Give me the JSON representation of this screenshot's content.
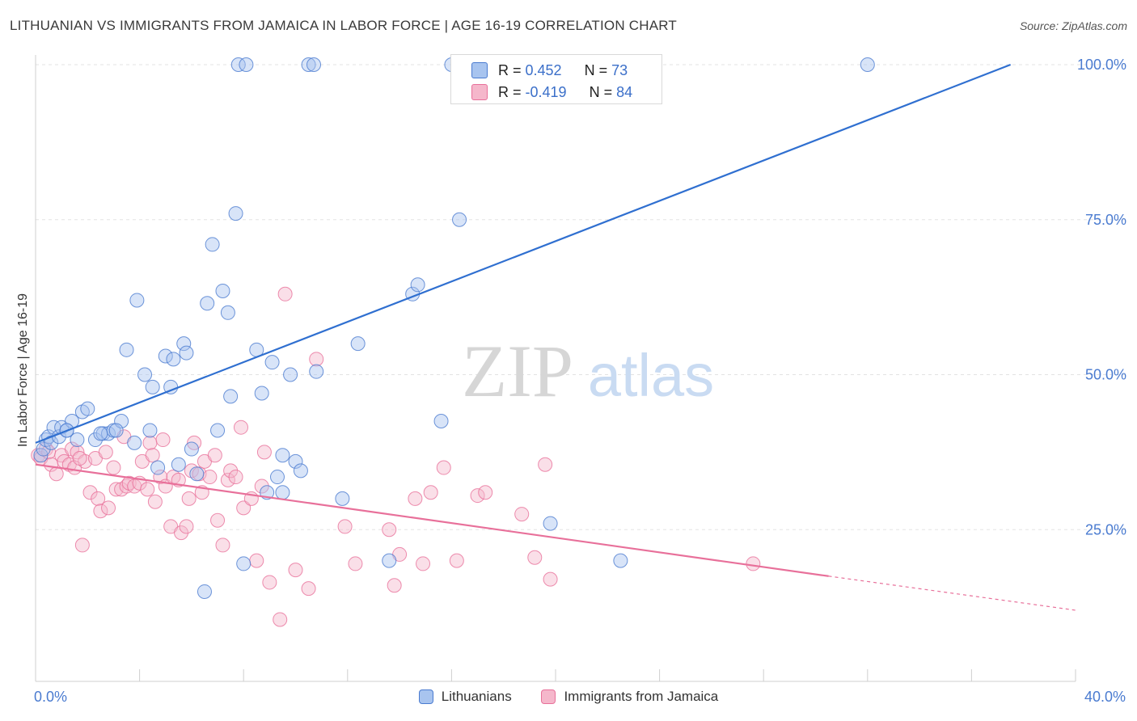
{
  "title": "LITHUANIAN VS IMMIGRANTS FROM JAMAICA IN LABOR FORCE | AGE 16-19 CORRELATION CHART",
  "source": "Source: ZipAtlas.com",
  "watermark": {
    "zip": "ZIP",
    "atlas": "atlas"
  },
  "colors": {
    "blue": "#4a7bd0",
    "blue_fill": "#a8c4ef",
    "blue_line": "#2f6fd0",
    "pink": "#e8709a",
    "pink_fill": "#f5b7cb",
    "axis_text": "#4a7bd0"
  },
  "legend_top": {
    "rows": [
      {
        "r_label": "R = ",
        "r_value": "0.452",
        "n_label": "N = ",
        "n_value": "73"
      },
      {
        "r_label": "R = ",
        "r_value": "-0.419",
        "n_label": "N = ",
        "n_value": "84"
      }
    ]
  },
  "legend_bottom": [
    "Lithuanians",
    "Immigrants from Jamaica"
  ],
  "chart_data": {
    "type": "scatter",
    "title": "LITHUANIAN VS IMMIGRANTS FROM JAMAICA IN LABOR FORCE | AGE 16-19 CORRELATION CHART",
    "xlabel": "",
    "ylabel": "In Labor Force | Age 16-19",
    "xlim": [
      0,
      40
    ],
    "ylim": [
      0,
      100
    ],
    "x_tick_labels": [
      "0.0%",
      "40.0%"
    ],
    "y_ticks": [
      25,
      50,
      75,
      100
    ],
    "y_tick_labels": [
      "25.0%",
      "50.0%",
      "75.0%",
      "100.0%"
    ],
    "grid": true,
    "legend_position": "top-center",
    "series": [
      {
        "name": "Lithuanians",
        "r": 0.452,
        "n": 73,
        "trend": {
          "x": [
            0,
            37.5
          ],
          "y": [
            39.0,
            100.0
          ]
        },
        "points": [
          [
            0.2,
            37.0
          ],
          [
            0.3,
            38.0
          ],
          [
            0.4,
            39.5
          ],
          [
            0.5,
            40.0
          ],
          [
            0.6,
            39.0
          ],
          [
            0.7,
            41.5
          ],
          [
            0.9,
            40.0
          ],
          [
            1.0,
            41.5
          ],
          [
            1.2,
            41.0
          ],
          [
            1.4,
            42.5
          ],
          [
            1.6,
            39.5
          ],
          [
            1.8,
            44.0
          ],
          [
            2.0,
            44.5
          ],
          [
            2.3,
            39.5
          ],
          [
            2.6,
            40.5
          ],
          [
            2.8,
            40.5
          ],
          [
            3.0,
            41.0
          ],
          [
            3.3,
            42.5
          ],
          [
            3.5,
            54.0
          ],
          [
            3.8,
            39.0
          ],
          [
            3.9,
            62.0
          ],
          [
            4.2,
            50.0
          ],
          [
            4.4,
            41.0
          ],
          [
            4.7,
            35.0
          ],
          [
            4.5,
            48.0
          ],
          [
            5.0,
            53.0
          ],
          [
            5.2,
            48.0
          ],
          [
            5.3,
            52.5
          ],
          [
            5.5,
            35.5
          ],
          [
            5.7,
            55.0
          ],
          [
            5.8,
            53.5
          ],
          [
            6.0,
            38.0
          ],
          [
            6.2,
            34.0
          ],
          [
            6.6,
            61.5
          ],
          [
            6.8,
            71.0
          ],
          [
            7.0,
            41.0
          ],
          [
            7.2,
            63.5
          ],
          [
            7.4,
            60.0
          ],
          [
            7.5,
            46.5
          ],
          [
            7.7,
            76.0
          ],
          [
            8.0,
            19.5
          ],
          [
            8.5,
            54.0
          ],
          [
            8.7,
            47.0
          ],
          [
            8.9,
            31.0
          ],
          [
            9.1,
            52.0
          ],
          [
            9.3,
            33.5
          ],
          [
            9.5,
            37.0
          ],
          [
            9.8,
            50.0
          ],
          [
            10.0,
            36.0
          ],
          [
            10.2,
            34.5
          ],
          [
            10.8,
            50.5
          ],
          [
            11.8,
            30.0
          ],
          [
            12.4,
            55.0
          ],
          [
            13.6,
            20.0
          ],
          [
            14.5,
            63.0
          ],
          [
            14.7,
            64.5
          ],
          [
            15.6,
            42.5
          ],
          [
            16.3,
            75.0
          ],
          [
            19.8,
            26.0
          ],
          [
            22.5,
            20.0
          ],
          [
            7.8,
            100.0
          ],
          [
            8.1,
            100.0
          ],
          [
            10.5,
            100.0
          ],
          [
            10.7,
            100.0
          ],
          [
            16.0,
            100.0
          ],
          [
            18.9,
            100.0
          ],
          [
            21.5,
            100.0
          ],
          [
            32.0,
            100.0
          ],
          [
            2.5,
            40.5
          ],
          [
            3.1,
            41.0
          ],
          [
            6.5,
            15.0
          ],
          [
            9.5,
            31.0
          ],
          [
            1.2,
            41.0
          ]
        ]
      },
      {
        "name": "Immigrants from Jamaica",
        "r": -0.419,
        "n": 84,
        "trend": {
          "x": [
            0,
            30.5
          ],
          "y": [
            35.5,
            17.5
          ]
        },
        "trend_dashed": {
          "x": [
            30.5,
            40.0
          ],
          "y": [
            17.5,
            12.0
          ]
        },
        "points": [
          [
            0.1,
            37.0
          ],
          [
            0.2,
            36.5
          ],
          [
            0.4,
            38.0
          ],
          [
            0.5,
            37.5
          ],
          [
            0.6,
            35.5
          ],
          [
            0.8,
            34.0
          ],
          [
            1.0,
            37.0
          ],
          [
            1.1,
            36.0
          ],
          [
            1.3,
            35.5
          ],
          [
            1.4,
            38.0
          ],
          [
            1.5,
            35.0
          ],
          [
            1.6,
            37.5
          ],
          [
            1.8,
            22.5
          ],
          [
            1.9,
            36.0
          ],
          [
            2.1,
            31.0
          ],
          [
            2.3,
            36.5
          ],
          [
            2.4,
            30.0
          ],
          [
            2.5,
            28.0
          ],
          [
            2.7,
            37.5
          ],
          [
            2.8,
            28.5
          ],
          [
            3.0,
            35.0
          ],
          [
            3.1,
            31.5
          ],
          [
            3.3,
            31.5
          ],
          [
            3.4,
            40.0
          ],
          [
            3.5,
            32.0
          ],
          [
            3.6,
            32.5
          ],
          [
            3.8,
            32.0
          ],
          [
            4.0,
            32.5
          ],
          [
            4.1,
            36.0
          ],
          [
            4.3,
            31.5
          ],
          [
            4.4,
            39.0
          ],
          [
            4.5,
            37.0
          ],
          [
            4.6,
            29.5
          ],
          [
            4.8,
            33.5
          ],
          [
            4.9,
            39.5
          ],
          [
            5.0,
            32.0
          ],
          [
            5.2,
            25.5
          ],
          [
            5.3,
            33.5
          ],
          [
            5.5,
            33.0
          ],
          [
            5.6,
            24.5
          ],
          [
            5.8,
            25.5
          ],
          [
            5.9,
            30.0
          ],
          [
            6.0,
            34.5
          ],
          [
            6.1,
            39.0
          ],
          [
            6.3,
            34.0
          ],
          [
            6.4,
            31.0
          ],
          [
            6.5,
            36.0
          ],
          [
            6.7,
            33.5
          ],
          [
            6.9,
            37.0
          ],
          [
            7.0,
            26.5
          ],
          [
            7.2,
            22.5
          ],
          [
            7.4,
            33.0
          ],
          [
            7.5,
            34.5
          ],
          [
            7.7,
            33.5
          ],
          [
            7.9,
            41.5
          ],
          [
            8.0,
            28.5
          ],
          [
            8.3,
            30.0
          ],
          [
            8.5,
            20.0
          ],
          [
            8.7,
            32.0
          ],
          [
            8.8,
            37.5
          ],
          [
            9.0,
            16.5
          ],
          [
            9.4,
            10.5
          ],
          [
            9.6,
            63.0
          ],
          [
            10.0,
            18.5
          ],
          [
            10.5,
            15.5
          ],
          [
            10.8,
            52.5
          ],
          [
            11.9,
            25.5
          ],
          [
            12.3,
            19.5
          ],
          [
            13.6,
            25.0
          ],
          [
            13.8,
            16.0
          ],
          [
            14.0,
            21.0
          ],
          [
            14.6,
            30.0
          ],
          [
            14.9,
            19.5
          ],
          [
            15.2,
            31.0
          ],
          [
            15.7,
            35.0
          ],
          [
            16.2,
            20.0
          ],
          [
            17.0,
            30.5
          ],
          [
            17.3,
            31.0
          ],
          [
            18.7,
            27.5
          ],
          [
            19.2,
            20.5
          ],
          [
            19.6,
            35.5
          ],
          [
            19.8,
            17.0
          ],
          [
            27.6,
            19.5
          ],
          [
            1.7,
            36.5
          ]
        ]
      }
    ]
  }
}
